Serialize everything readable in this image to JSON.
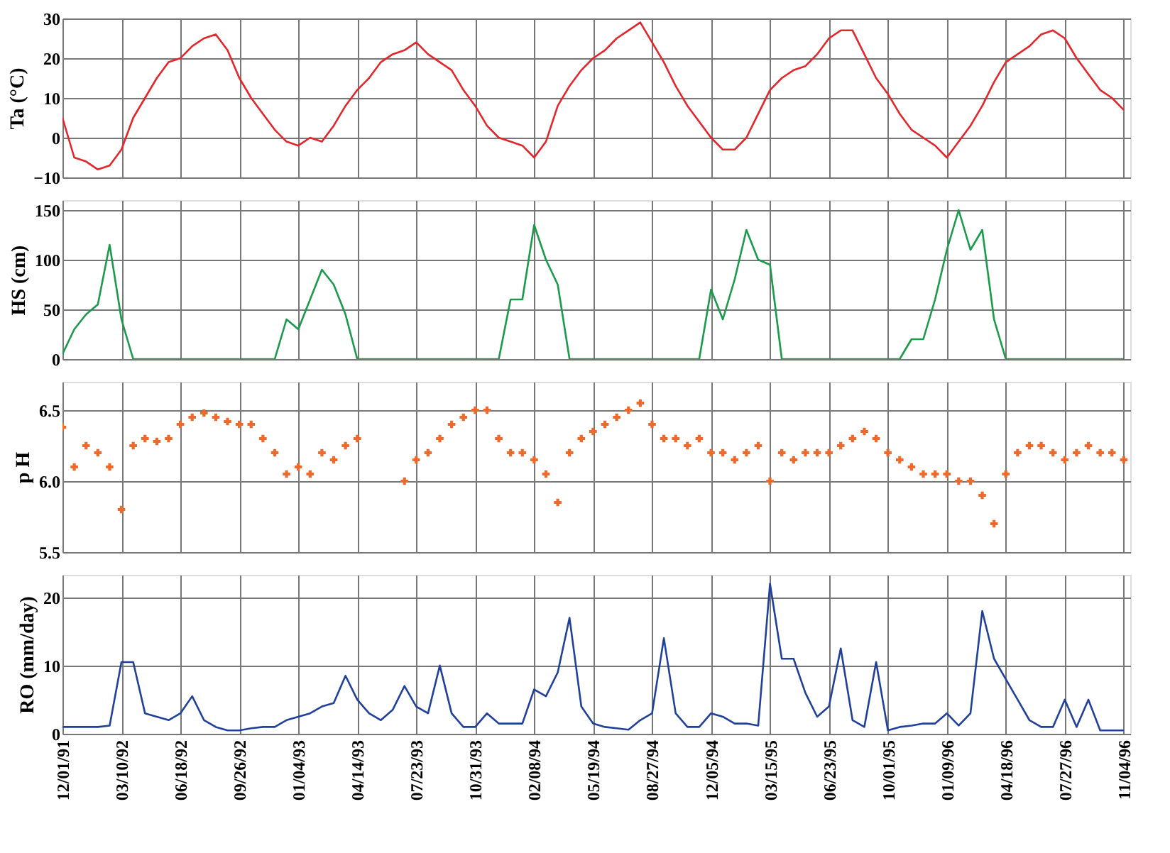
{
  "chart_data": [
    {
      "type": "line",
      "ylabel": "Ta (°C)",
      "grid": true,
      "tick_labels": "y",
      "xlim": [
        "1991-12-01",
        "1996-11-15"
      ],
      "ylim": [
        -10,
        30
      ],
      "yticks": [
        -10,
        0,
        10,
        20,
        30
      ],
      "xticks": [
        "1991-12-01",
        "1992-03-10",
        "1992-06-18",
        "1992-09-26",
        "1993-01-04",
        "1993-04-14",
        "1993-07-23",
        "1993-10-31",
        "1994-02-08",
        "1994-05-19",
        "1994-08-27",
        "1994-12-05",
        "1995-03-15",
        "1995-06-23",
        "1995-10-01",
        "1996-01-09",
        "1996-04-18",
        "1996-07-27",
        "1996-11-04"
      ],
      "x": [
        "1991-12-01",
        "1991-12-21",
        "1992-01-10",
        "1992-01-30",
        "1992-02-19",
        "1992-03-10",
        "1992-03-30",
        "1992-04-19",
        "1992-05-09",
        "1992-05-29",
        "1992-06-18",
        "1992-07-08",
        "1992-07-28",
        "1992-08-17",
        "1992-09-06",
        "1992-09-26",
        "1992-10-16",
        "1992-11-05",
        "1992-11-25",
        "1992-12-15",
        "1993-01-04",
        "1993-01-24",
        "1993-02-13",
        "1993-03-05",
        "1993-03-25",
        "1993-04-14",
        "1993-05-04",
        "1993-05-24",
        "1993-06-13",
        "1993-07-03",
        "1993-07-23",
        "1993-08-12",
        "1993-09-01",
        "1993-09-21",
        "1993-10-11",
        "1993-10-31",
        "1993-11-20",
        "1993-12-10",
        "1993-12-30",
        "1994-01-19",
        "1994-02-08",
        "1994-02-28",
        "1994-03-20",
        "1994-04-09",
        "1994-04-29",
        "1994-05-19",
        "1994-06-08",
        "1994-06-28",
        "1994-07-18",
        "1994-08-07",
        "1994-08-27",
        "1994-09-16",
        "1994-10-06",
        "1994-10-26",
        "1994-11-15",
        "1994-12-05",
        "1994-12-25",
        "1995-01-14",
        "1995-02-03",
        "1995-02-23",
        "1995-03-15",
        "1995-04-04",
        "1995-04-24",
        "1995-05-14",
        "1995-06-03",
        "1995-06-23",
        "1995-07-13",
        "1995-08-02",
        "1995-08-22",
        "1995-09-11",
        "1995-10-01",
        "1995-10-21",
        "1995-11-10",
        "1995-11-30",
        "1995-12-20",
        "1996-01-09",
        "1996-01-29",
        "1996-02-18",
        "1996-03-09",
        "1996-03-29",
        "1996-04-18",
        "1996-05-08",
        "1996-05-28",
        "1996-06-17",
        "1996-07-07",
        "1996-07-27",
        "1996-08-16",
        "1996-09-05",
        "1996-09-25",
        "1996-10-15",
        "1996-11-04"
      ],
      "series": [
        {
          "color": "#e4262c",
          "values": [
            5,
            -5,
            -6,
            -8,
            -7,
            -3,
            5,
            10,
            15,
            19,
            20,
            23,
            25,
            26,
            22,
            15,
            10,
            6,
            2,
            -1,
            -2,
            0,
            -1,
            3,
            8,
            12,
            15,
            19,
            21,
            22,
            24,
            21,
            19,
            17,
            12,
            8,
            3,
            0,
            -1,
            -2,
            -5,
            -1,
            8,
            13,
            17,
            20,
            22,
            25,
            27,
            29,
            24,
            19,
            13,
            8,
            4,
            0,
            -3,
            -3,
            0,
            6,
            12,
            15,
            17,
            18,
            21,
            25,
            27,
            27,
            21,
            15,
            11,
            6,
            2,
            0,
            -2,
            -5,
            -1,
            3,
            8,
            14,
            19,
            21,
            23,
            26,
            27,
            25,
            20,
            16,
            12,
            10,
            7
          ]
        }
      ]
    },
    {
      "type": "line",
      "ylabel": "HS (cm)",
      "grid": true,
      "tick_labels": "y",
      "xlim": [
        "1991-12-01",
        "1996-11-15"
      ],
      "ylim": [
        0,
        160
      ],
      "yticks": [
        0,
        50,
        100,
        150
      ],
      "xticks": [
        "1991-12-01",
        "1992-03-10",
        "1992-06-18",
        "1992-09-26",
        "1993-01-04",
        "1993-04-14",
        "1993-07-23",
        "1993-10-31",
        "1994-02-08",
        "1994-05-19",
        "1994-08-27",
        "1994-12-05",
        "1995-03-15",
        "1995-06-23",
        "1995-10-01",
        "1996-01-09",
        "1996-04-18",
        "1996-07-27",
        "1996-11-04"
      ],
      "x": [
        "1991-12-01",
        "1991-12-21",
        "1992-01-10",
        "1992-01-30",
        "1992-02-19",
        "1992-03-10",
        "1992-03-30",
        "1992-04-19",
        "1992-05-09",
        "1992-05-29",
        "1992-06-18",
        "1992-07-08",
        "1992-07-28",
        "1992-08-17",
        "1992-09-06",
        "1992-09-26",
        "1992-10-16",
        "1992-11-05",
        "1992-11-25",
        "1992-12-15",
        "1993-01-04",
        "1993-01-24",
        "1993-02-13",
        "1993-03-05",
        "1993-03-25",
        "1993-04-14",
        "1993-05-04",
        "1993-05-24",
        "1993-06-13",
        "1993-07-03",
        "1993-07-23",
        "1993-08-12",
        "1993-09-01",
        "1993-09-21",
        "1993-10-11",
        "1993-10-31",
        "1993-11-20",
        "1993-12-10",
        "1993-12-30",
        "1994-01-19",
        "1994-02-08",
        "1994-02-28",
        "1994-03-20",
        "1994-04-09",
        "1994-04-29",
        "1994-05-19",
        "1994-06-08",
        "1994-06-28",
        "1994-07-18",
        "1994-08-07",
        "1994-08-27",
        "1994-09-16",
        "1994-10-06",
        "1994-10-26",
        "1994-11-15",
        "1994-12-05",
        "1994-12-25",
        "1995-01-14",
        "1995-02-03",
        "1995-02-23",
        "1995-03-15",
        "1995-04-04",
        "1995-04-24",
        "1995-05-14",
        "1995-06-03",
        "1995-06-23",
        "1995-07-13",
        "1995-08-02",
        "1995-08-22",
        "1995-09-11",
        "1995-10-01",
        "1995-10-21",
        "1995-11-10",
        "1995-11-30",
        "1995-12-20",
        "1996-01-09",
        "1996-01-29",
        "1996-02-18",
        "1996-03-09",
        "1996-03-29",
        "1996-04-18",
        "1996-05-08",
        "1996-05-28",
        "1996-06-17",
        "1996-07-07",
        "1996-07-27",
        "1996-08-16",
        "1996-09-05",
        "1996-09-25",
        "1996-10-15",
        "1996-11-04"
      ],
      "series": [
        {
          "color": "#1a9a4a",
          "values": [
            5,
            30,
            45,
            55,
            115,
            40,
            0,
            0,
            0,
            0,
            0,
            0,
            0,
            0,
            0,
            0,
            0,
            0,
            0,
            40,
            30,
            60,
            90,
            75,
            45,
            0,
            0,
            0,
            0,
            0,
            0,
            0,
            0,
            0,
            0,
            0,
            0,
            0,
            60,
            60,
            135,
            100,
            75,
            0,
            0,
            0,
            0,
            0,
            0,
            0,
            0,
            0,
            0,
            0,
            0,
            70,
            40,
            80,
            130,
            100,
            95,
            0,
            0,
            0,
            0,
            0,
            0,
            0,
            0,
            0,
            0,
            0,
            20,
            20,
            60,
            110,
            150,
            110,
            130,
            40,
            0,
            0,
            0,
            0,
            0,
            0,
            0,
            0,
            0,
            0,
            0
          ]
        }
      ]
    },
    {
      "type": "scatter",
      "ylabel": "p H",
      "grid": true,
      "tick_labels": "y",
      "marker": "cross",
      "xlim": [
        "1991-12-01",
        "1996-11-15"
      ],
      "ylim": [
        5.5,
        6.7
      ],
      "yticks": [
        5.5,
        {
          "value": 6.0,
          "label": "6.0"
        },
        6.5
      ],
      "xticks": [
        "1991-12-01",
        "1992-03-10",
        "1992-06-18",
        "1992-09-26",
        "1993-01-04",
        "1993-04-14",
        "1993-07-23",
        "1993-10-31",
        "1994-02-08",
        "1994-05-19",
        "1994-08-27",
        "1994-12-05",
        "1995-03-15",
        "1995-06-23",
        "1995-10-01",
        "1996-01-09",
        "1996-04-18",
        "1996-07-27",
        "1996-11-04"
      ],
      "x": [
        "1991-12-01",
        "1991-12-21",
        "1992-01-10",
        "1992-01-30",
        "1992-02-19",
        "1992-03-10",
        "1992-03-30",
        "1992-04-19",
        "1992-05-09",
        "1992-05-29",
        "1992-06-18",
        "1992-07-08",
        "1992-07-28",
        "1992-08-17",
        "1992-09-06",
        "1992-09-26",
        "1992-10-16",
        "1992-11-05",
        "1992-11-25",
        "1992-12-15",
        "1993-01-04",
        "1993-01-24",
        "1993-02-13",
        "1993-03-05",
        "1993-03-25",
        "1993-04-14",
        "1993-05-04",
        "1993-05-24",
        "1993-06-13",
        "1993-07-03",
        "1993-07-23",
        "1993-08-12",
        "1993-09-01",
        "1993-09-21",
        "1993-10-11",
        "1993-10-31",
        "1993-11-20",
        "1993-12-10",
        "1993-12-30",
        "1994-01-19",
        "1994-02-08",
        "1994-02-28",
        "1994-03-20",
        "1994-04-09",
        "1994-04-29",
        "1994-05-19",
        "1994-06-08",
        "1994-06-28",
        "1994-07-18",
        "1994-08-07",
        "1994-08-27",
        "1994-09-16",
        "1994-10-06",
        "1994-10-26",
        "1994-11-15",
        "1994-12-05",
        "1994-12-25",
        "1995-01-14",
        "1995-02-03",
        "1995-02-23",
        "1995-03-15",
        "1995-04-04",
        "1995-04-24",
        "1995-05-14",
        "1995-06-03",
        "1995-06-23",
        "1995-07-13",
        "1995-08-02",
        "1995-08-22",
        "1995-09-11",
        "1995-10-01",
        "1995-10-21",
        "1995-11-10",
        "1995-11-30",
        "1995-12-20",
        "1996-01-09",
        "1996-01-29",
        "1996-02-18",
        "1996-03-09",
        "1996-03-29",
        "1996-04-18",
        "1996-05-08",
        "1996-05-28",
        "1996-06-17",
        "1996-07-07",
        "1996-07-27",
        "1996-08-16",
        "1996-09-05",
        "1996-09-25",
        "1996-10-15",
        "1996-11-04"
      ],
      "series": [
        {
          "color": "#ee6a2c",
          "values": [
            6.38,
            6.1,
            6.25,
            6.2,
            6.1,
            5.8,
            6.25,
            6.3,
            6.28,
            6.3,
            6.4,
            6.45,
            6.48,
            6.45,
            6.42,
            6.4,
            6.4,
            6.3,
            6.2,
            6.05,
            6.1,
            6.05,
            6.2,
            6.15,
            6.25,
            6.3,
            null,
            null,
            null,
            6.0,
            6.15,
            6.2,
            6.3,
            6.4,
            6.45,
            6.5,
            6.5,
            6.3,
            6.2,
            6.2,
            6.15,
            6.05,
            5.85,
            6.2,
            6.3,
            6.35,
            6.4,
            6.45,
            6.5,
            6.55,
            6.4,
            6.3,
            6.3,
            6.25,
            6.3,
            6.2,
            6.2,
            6.15,
            6.2,
            6.25,
            6.0,
            6.2,
            6.15,
            6.2,
            6.2,
            6.2,
            6.25,
            6.3,
            6.35,
            6.3,
            6.2,
            6.15,
            6.1,
            6.05,
            6.05,
            6.05,
            6.0,
            6.0,
            5.9,
            5.7,
            6.05,
            6.2,
            6.25,
            6.25,
            6.2,
            6.15,
            6.2,
            6.25,
            6.2,
            6.2,
            6.15
          ]
        }
      ]
    },
    {
      "type": "line",
      "ylabel": "RO (mm/day)",
      "grid": true,
      "xlim": [
        "1991-12-01",
        "1996-11-15"
      ],
      "ylim": [
        0,
        23.3
      ],
      "yticks": [
        0,
        10,
        20
      ],
      "xticks": [
        {
          "value": "1991-12-01",
          "label": "12/01/91"
        },
        {
          "value": "1992-03-10",
          "label": "03/10/92"
        },
        {
          "value": "1992-06-18",
          "label": "06/18/92"
        },
        {
          "value": "1992-09-26",
          "label": "09/26/92"
        },
        {
          "value": "1993-01-04",
          "label": "01/04/93"
        },
        {
          "value": "1993-04-14",
          "label": "04/14/93"
        },
        {
          "value": "1993-07-23",
          "label": "07/23/93"
        },
        {
          "value": "1993-10-31",
          "label": "10/31/93"
        },
        {
          "value": "1994-02-08",
          "label": "02/08/94"
        },
        {
          "value": "1994-05-19",
          "label": "05/19/94"
        },
        {
          "value": "1994-08-27",
          "label": "08/27/94"
        },
        {
          "value": "1994-12-05",
          "label": "12/05/94"
        },
        {
          "value": "1995-03-15",
          "label": "03/15/95"
        },
        {
          "value": "1995-06-23",
          "label": "06/23/95"
        },
        {
          "value": "1995-10-01",
          "label": "10/01/95"
        },
        {
          "value": "1996-01-09",
          "label": "01/09/96"
        },
        {
          "value": "1996-04-18",
          "label": "04/18/96"
        },
        {
          "value": "1996-07-27",
          "label": "07/27/96"
        },
        {
          "value": "1996-11-04",
          "label": "11/04/96"
        }
      ],
      "x": [
        "1991-12-01",
        "1991-12-21",
        "1992-01-10",
        "1992-01-30",
        "1992-02-19",
        "1992-03-10",
        "1992-03-30",
        "1992-04-19",
        "1992-05-09",
        "1992-05-29",
        "1992-06-18",
        "1992-07-08",
        "1992-07-28",
        "1992-08-17",
        "1992-09-06",
        "1992-09-26",
        "1992-10-16",
        "1992-11-05",
        "1992-11-25",
        "1992-12-15",
        "1993-01-04",
        "1993-01-24",
        "1993-02-13",
        "1993-03-05",
        "1993-03-25",
        "1993-04-14",
        "1993-05-04",
        "1993-05-24",
        "1993-06-13",
        "1993-07-03",
        "1993-07-23",
        "1993-08-12",
        "1993-09-01",
        "1993-09-21",
        "1993-10-11",
        "1993-10-31",
        "1993-11-20",
        "1993-12-10",
        "1993-12-30",
        "1994-01-19",
        "1994-02-08",
        "1994-02-28",
        "1994-03-20",
        "1994-04-09",
        "1994-04-29",
        "1994-05-19",
        "1994-06-08",
        "1994-06-28",
        "1994-07-18",
        "1994-08-07",
        "1994-08-27",
        "1994-09-16",
        "1994-10-06",
        "1994-10-26",
        "1994-11-15",
        "1994-12-05",
        "1994-12-25",
        "1995-01-14",
        "1995-02-03",
        "1995-02-23",
        "1995-03-15",
        "1995-04-04",
        "1995-04-24",
        "1995-05-14",
        "1995-06-03",
        "1995-06-23",
        "1995-07-13",
        "1995-08-02",
        "1995-08-22",
        "1995-09-11",
        "1995-10-01",
        "1995-10-21",
        "1995-11-10",
        "1995-11-30",
        "1995-12-20",
        "1996-01-09",
        "1996-01-29",
        "1996-02-18",
        "1996-03-09",
        "1996-03-29",
        "1996-04-18",
        "1996-05-08",
        "1996-05-28",
        "1996-06-17",
        "1996-07-07",
        "1996-07-27",
        "1996-08-16",
        "1996-09-05",
        "1996-09-25",
        "1996-10-15",
        "1996-11-04"
      ],
      "series": [
        {
          "color": "#21409a",
          "values": [
            1,
            1,
            1,
            1,
            1.2,
            10.5,
            10.5,
            3,
            2.5,
            2,
            3,
            5.5,
            2,
            1,
            0.5,
            0.5,
            0.8,
            1,
            1,
            2,
            2.5,
            3,
            4,
            4.5,
            8.5,
            5,
            3,
            2,
            3.5,
            7,
            4,
            3,
            10,
            3,
            1,
            1,
            3,
            1.5,
            1.5,
            1.5,
            6.5,
            5.5,
            9,
            17,
            4,
            1.5,
            1,
            0.8,
            0.6,
            2,
            3,
            14,
            3,
            1,
            1,
            3,
            2.5,
            1.5,
            1.5,
            1.2,
            22,
            11,
            11,
            6,
            2.5,
            4,
            12.5,
            2,
            1,
            10.5,
            0.5,
            1,
            1.2,
            1.5,
            1.5,
            3,
            1.2,
            3,
            18,
            11,
            8,
            5,
            2,
            1,
            1,
            5,
            1,
            5,
            0.5,
            0.5,
            0.5
          ]
        }
      ]
    }
  ]
}
